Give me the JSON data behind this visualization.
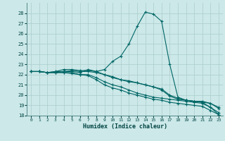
{
  "xlabel": "Humidex (Indice chaleur)",
  "background_color": "#cce8e8",
  "grid_color": "#aacccc",
  "line_color": "#006666",
  "xlim": [
    -0.5,
    23.5
  ],
  "ylim": [
    18,
    29
  ],
  "yticks": [
    18,
    19,
    20,
    21,
    22,
    23,
    24,
    25,
    26,
    27,
    28
  ],
  "xticks": [
    0,
    1,
    2,
    3,
    4,
    5,
    6,
    7,
    8,
    9,
    10,
    11,
    12,
    13,
    14,
    15,
    16,
    17,
    18,
    19,
    20,
    21,
    22,
    23
  ],
  "series": [
    [
      22.3,
      22.3,
      22.2,
      22.2,
      22.2,
      22.1,
      22.0,
      21.9,
      21.5,
      21.0,
      20.7,
      20.5,
      20.2,
      20.0,
      19.8,
      19.6,
      19.5,
      19.3,
      19.2,
      19.1,
      19.0,
      18.9,
      18.5,
      18.1
    ],
    [
      22.3,
      22.3,
      22.2,
      22.2,
      22.2,
      22.2,
      22.0,
      22.0,
      21.7,
      21.3,
      21.0,
      20.8,
      20.5,
      20.2,
      20.0,
      19.8,
      19.7,
      19.6,
      19.5,
      19.4,
      19.3,
      19.2,
      18.8,
      18.3
    ],
    [
      22.3,
      22.3,
      22.2,
      22.2,
      22.3,
      22.3,
      22.2,
      22.5,
      22.3,
      22.0,
      21.7,
      21.5,
      21.3,
      21.2,
      21.0,
      20.8,
      20.5,
      19.9,
      19.6,
      19.5,
      19.4,
      19.3,
      19.2,
      18.7
    ],
    [
      22.3,
      22.3,
      22.2,
      22.3,
      22.3,
      22.4,
      22.3,
      22.3,
      22.2,
      22.0,
      21.8,
      21.5,
      21.4,
      21.2,
      21.0,
      20.8,
      20.6,
      20.0,
      19.7,
      19.5,
      19.4,
      19.4,
      19.2,
      18.8
    ],
    [
      22.3,
      22.3,
      22.2,
      22.3,
      22.5,
      22.5,
      22.4,
      22.4,
      22.3,
      22.5,
      23.3,
      23.8,
      25.0,
      26.7,
      28.1,
      27.9,
      27.2,
      23.0,
      19.8,
      19.5,
      19.4,
      19.3,
      18.8,
      18.1
    ]
  ]
}
